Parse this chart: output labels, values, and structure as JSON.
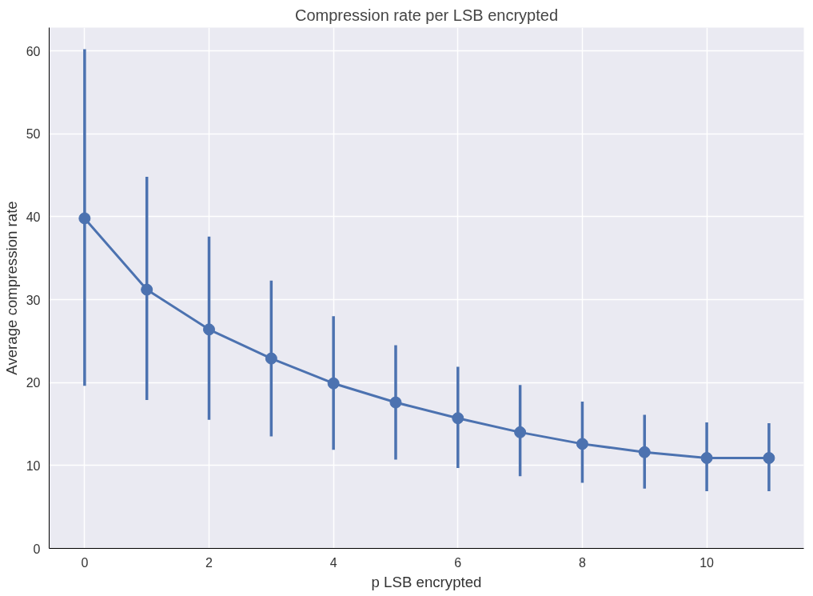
{
  "chart_data": {
    "type": "line",
    "title": "Compression rate per LSB encrypted",
    "xlabel": "p LSB encrypted",
    "ylabel": "Average compression rate",
    "x": [
      0,
      1,
      2,
      3,
      4,
      5,
      6,
      7,
      8,
      9,
      10,
      11
    ],
    "series": [
      {
        "color": "#4c72b0",
        "values": [
          39.8,
          31.2,
          26.4,
          22.9,
          19.9,
          17.6,
          15.7,
          14.0,
          12.6,
          11.6,
          10.9,
          10.9
        ],
        "errors": [
          [
            19.6,
            60.2
          ],
          [
            17.9,
            44.8
          ],
          [
            15.5,
            37.6
          ],
          [
            13.5,
            32.3
          ],
          [
            11.9,
            28.0
          ],
          [
            10.7,
            24.5
          ],
          [
            9.7,
            21.9
          ],
          [
            8.7,
            19.7
          ],
          [
            7.9,
            17.7
          ],
          [
            7.2,
            16.1
          ],
          [
            6.9,
            15.2
          ],
          [
            6.9,
            15.1
          ]
        ]
      }
    ],
    "xlim": [
      -0.57,
      11.56
    ],
    "ylim": [
      0,
      62.8
    ],
    "xticks": [
      0,
      2,
      4,
      6,
      8,
      10
    ],
    "yticks": [
      0,
      10,
      20,
      30,
      40,
      50,
      60
    ],
    "grid": true,
    "marker": "circle",
    "line_style": "solid"
  }
}
